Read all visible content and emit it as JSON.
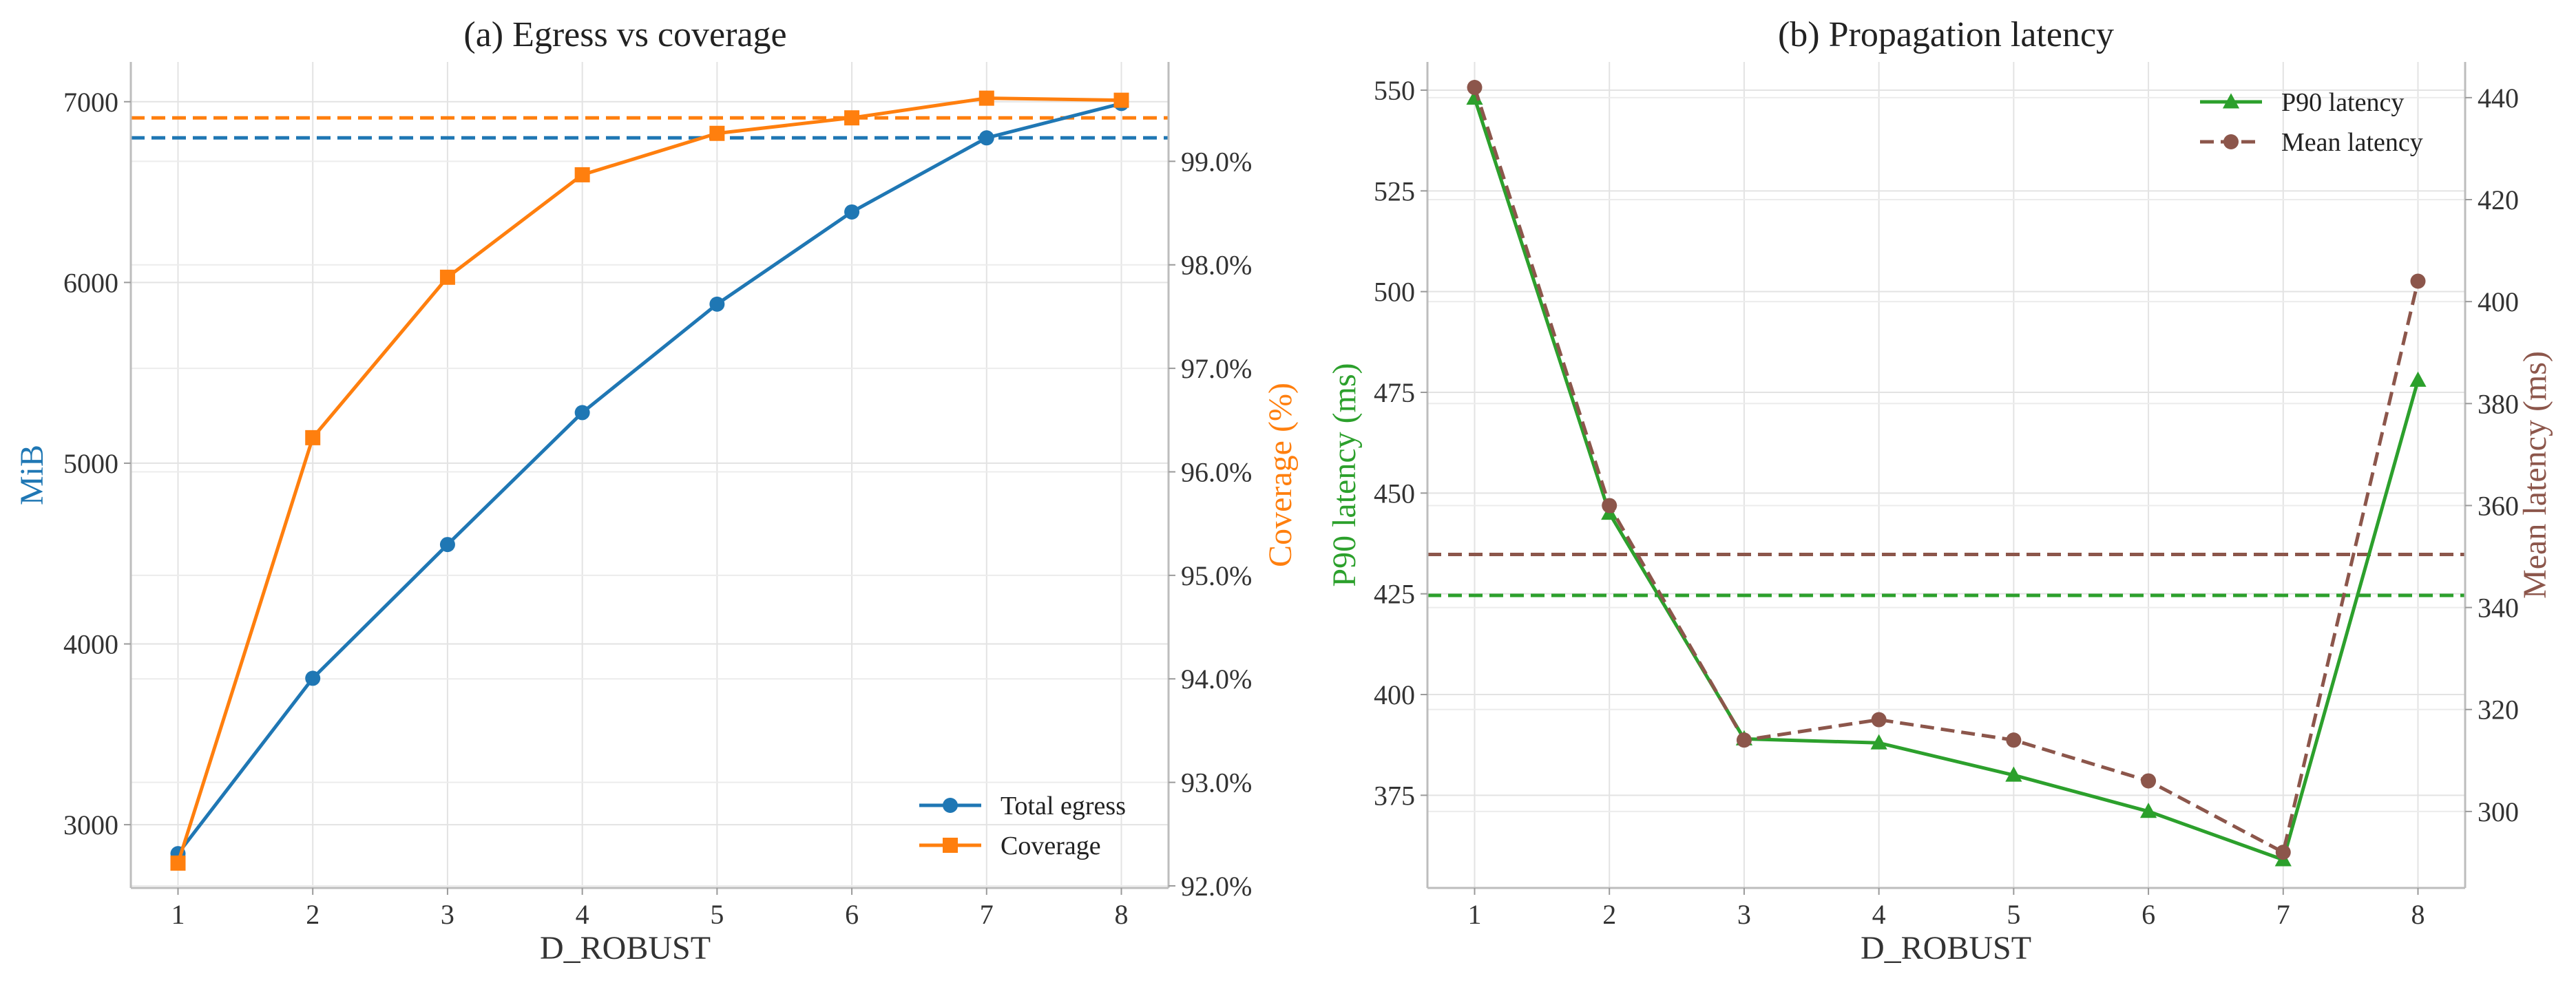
{
  "chart_data": [
    {
      "type": "line",
      "title": "(a) Egress vs coverage",
      "xlabel": "D_ROBUST",
      "ylabel": "MiB",
      "y2label": "Coverage (%)",
      "x": [
        1,
        2,
        3,
        4,
        5,
        6,
        7,
        8
      ],
      "xlim": [
        0.65,
        8.35
      ],
      "ylim": [
        2650,
        7220
      ],
      "y2lim": [
        91.98,
        99.96
      ],
      "yticks": [
        3000,
        4000,
        5000,
        6000,
        7000
      ],
      "y2ticks": [
        92.0,
        93.0,
        94.0,
        95.0,
        96.0,
        97.0,
        98.0,
        99.0
      ],
      "y2tick_labels": [
        "92.0%",
        "93.0%",
        "94.0%",
        "95.0%",
        "96.0%",
        "97.0%",
        "98.0%",
        "99.0%"
      ],
      "grid": true,
      "legend_position": "lower-right",
      "series": [
        {
          "name": "Total egress",
          "axis": "left",
          "color": "#1f77b4",
          "marker": "circle",
          "style": "solid",
          "values": [
            2840,
            3810,
            4550,
            5280,
            5880,
            6390,
            6800,
            6990
          ]
        },
        {
          "name": "Coverage",
          "axis": "right",
          "color": "#ff7f0e",
          "marker": "square",
          "style": "solid",
          "values": [
            92.22,
            96.33,
            97.88,
            98.87,
            99.27,
            99.42,
            99.61,
            99.59
          ]
        }
      ],
      "reference_lines": [
        {
          "axis": "left",
          "value": 6800,
          "color": "#1f77b4"
        },
        {
          "axis": "right",
          "value": 99.42,
          "color": "#ff7f0e"
        }
      ]
    },
    {
      "type": "line",
      "title": "(b) Propagation latency",
      "xlabel": "D_ROBUST",
      "ylabel": "P90 latency (ms)",
      "y2label": "Mean latency (ms)",
      "x": [
        1,
        2,
        3,
        4,
        5,
        6,
        7,
        8
      ],
      "xlim": [
        0.65,
        8.35
      ],
      "ylim": [
        352,
        557
      ],
      "y2lim": [
        285,
        447
      ],
      "yticks": [
        375,
        400,
        425,
        450,
        475,
        500,
        525,
        550
      ],
      "y2ticks": [
        300,
        320,
        340,
        360,
        380,
        400,
        420,
        440
      ],
      "grid": true,
      "legend_position": "upper-right",
      "series": [
        {
          "name": "P90 latency",
          "axis": "left",
          "color": "#2ca02c",
          "marker": "triangle",
          "style": "solid",
          "values": [
            548,
            445,
            389,
            388,
            380,
            371,
            359,
            478
          ]
        },
        {
          "name": "Mean latency",
          "axis": "right",
          "color": "#8c564b",
          "marker": "circle",
          "style": "dashed",
          "values": [
            442,
            360,
            314,
            318,
            314,
            306,
            292,
            404
          ]
        }
      ],
      "reference_lines": [
        {
          "axis": "left",
          "value": 424.6,
          "color": "#2ca02c"
        },
        {
          "axis": "right",
          "value": 350.4,
          "color": "#8c564b"
        }
      ]
    }
  ]
}
